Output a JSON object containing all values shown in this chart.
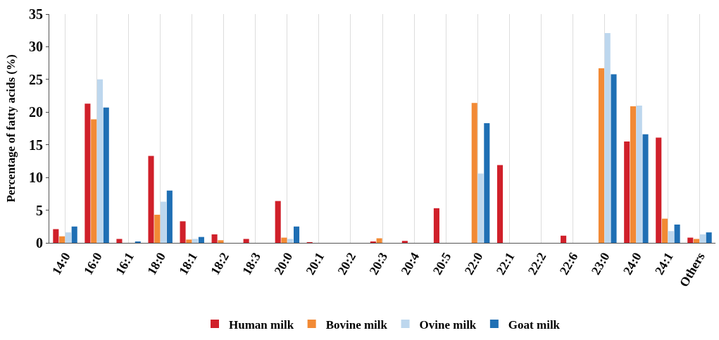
{
  "chart_data": {
    "type": "bar",
    "ylabel": "Percentage of fatty acids (%)",
    "categories": [
      "14:0",
      "16:0",
      "16:1",
      "18:0",
      "18:1",
      "18:2",
      "18:3",
      "20:0",
      "20:1",
      "20:2",
      "20:3",
      "20:4",
      "20:5",
      "22:0",
      "22:1",
      "22:2",
      "22:6",
      "23:0",
      "24:0",
      "24:1",
      "Others"
    ],
    "series": [
      {
        "name": "Human milk",
        "color": "#d0202a",
        "values": [
          2.1,
          21.3,
          0.6,
          13.3,
          3.3,
          1.3,
          0.6,
          6.4,
          0.1,
          null,
          0.2,
          0.3,
          5.3,
          null,
          11.9,
          null,
          1.1,
          null,
          15.5,
          16.1,
          0.8
        ]
      },
      {
        "name": "Bovine milk",
        "color": "#f28a35",
        "values": [
          1.0,
          18.9,
          null,
          4.3,
          0.5,
          0.4,
          null,
          0.8,
          null,
          null,
          0.7,
          null,
          null,
          21.4,
          null,
          null,
          null,
          26.7,
          20.9,
          3.7,
          0.6
        ]
      },
      {
        "name": "Ovine milk",
        "color": "#bdd7ee",
        "values": [
          1.6,
          25.0,
          null,
          6.3,
          0.6,
          null,
          null,
          0.6,
          null,
          null,
          null,
          null,
          null,
          10.6,
          null,
          null,
          null,
          32.1,
          21.0,
          1.8,
          1.3
        ]
      },
      {
        "name": "Goat milk",
        "color": "#1f6fb4",
        "values": [
          2.5,
          20.7,
          0.2,
          8.0,
          0.9,
          null,
          null,
          2.5,
          null,
          null,
          null,
          null,
          null,
          18.3,
          null,
          null,
          null,
          25.8,
          16.6,
          2.8,
          1.6
        ]
      }
    ],
    "ylim": [
      0,
      35
    ],
    "yticks": [
      0,
      5,
      10,
      15,
      20,
      25,
      30,
      35
    ],
    "grid": "x",
    "legend": "bottom"
  }
}
